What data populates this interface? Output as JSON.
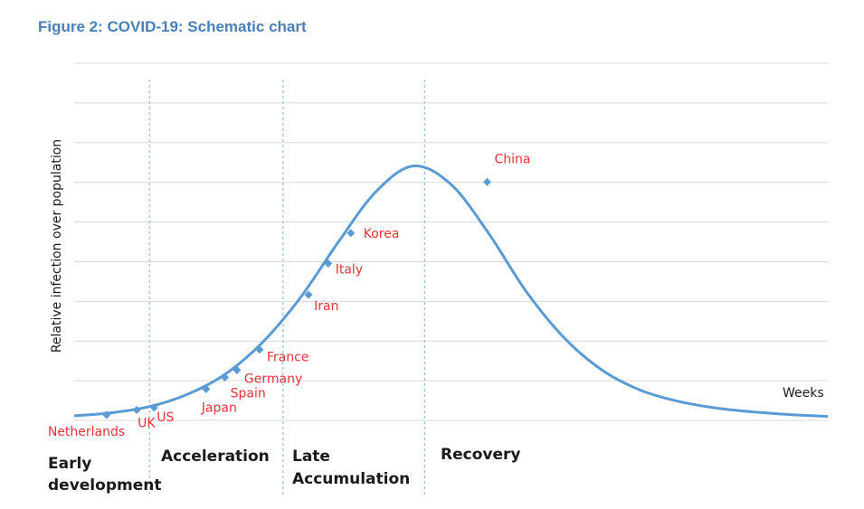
{
  "chart_data": {
    "type": "line",
    "title": "Figure 2: COVID-19: Schematic chart",
    "ylabel": "Relative infection over population",
    "xlabel": "Weeks",
    "xlim": [
      0,
      100
    ],
    "ylim": [
      0,
      100
    ],
    "grid": true,
    "curve": {
      "x": [
        0,
        5,
        10,
        15,
        20,
        25,
        30,
        35,
        40,
        45,
        50,
        55,
        60,
        65,
        70,
        75,
        80,
        85,
        90,
        95,
        100
      ],
      "y": [
        1.5,
        2.5,
        4.5,
        8.5,
        15,
        25.5,
        40,
        58,
        74.5,
        83,
        77,
        61,
        42,
        27,
        16.5,
        10,
        6.3,
        4.1,
        2.8,
        1.9,
        1.3
      ]
    },
    "points": [
      {
        "label": "Netherlands",
        "x": 4.3,
        "y": 1.8
      },
      {
        "label": "UK",
        "x": 8.3,
        "y": 3.4
      },
      {
        "label": "US",
        "x": 10.6,
        "y": 4.2
      },
      {
        "label": "Japan",
        "x": 17.5,
        "y": 10.2
      },
      {
        "label": "Spain",
        "x": 20,
        "y": 14
      },
      {
        "label": "Germany",
        "x": 21.6,
        "y": 16.4
      },
      {
        "label": "France",
        "x": 24.6,
        "y": 23.1
      },
      {
        "label": "Iran",
        "x": 31.1,
        "y": 41
      },
      {
        "label": "Italy",
        "x": 33.7,
        "y": 51.2
      },
      {
        "label": "Korea",
        "x": 36.7,
        "y": 61.1
      },
      {
        "label": "China",
        "x": 54.8,
        "y": 77.8
      }
    ],
    "phase_boundaries": [
      10,
      27.7,
      46.5
    ],
    "phases": [
      {
        "line1": "Early",
        "line2": "development"
      },
      {
        "line1": "Acceleration",
        "line2": ""
      },
      {
        "line1": "Late",
        "line2": "Accumulation"
      },
      {
        "line1": "Recovery",
        "line2": ""
      }
    ],
    "colors": {
      "curve": "#5b9bd5",
      "point": "#5b9bd5",
      "label": "#e8323c",
      "grid": "#d9d9d9",
      "divider": "#9dc3e6",
      "title": "#4a7fb5"
    }
  }
}
